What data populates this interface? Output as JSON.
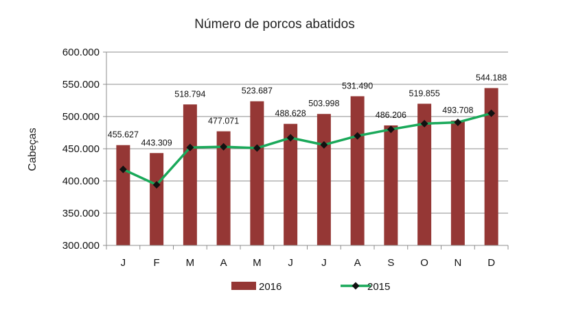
{
  "chart_data": {
    "type": "bar",
    "title": "Número de porcos abatidos",
    "ylabel": "Cabeças",
    "xlabel": "",
    "categories": [
      "J",
      "F",
      "M",
      "A",
      "M",
      "J",
      "J",
      "A",
      "S",
      "O",
      "N",
      "D"
    ],
    "ylim": [
      300000,
      600000
    ],
    "yticks": [
      300000,
      350000,
      400000,
      450000,
      500000,
      550000,
      600000
    ],
    "ytick_labels": [
      "300.000",
      "350.000",
      "400.000",
      "450.000",
      "500.000",
      "550.000",
      "600.000"
    ],
    "grid": true,
    "legend_position": "bottom",
    "series": [
      {
        "name": "2016",
        "kind": "bar",
        "color": "#953735",
        "values": [
          455627,
          443309,
          518794,
          477071,
          523687,
          488628,
          503998,
          531490,
          486206,
          519855,
          493708,
          544188
        ],
        "labels": [
          "455.627",
          "443.309",
          "518.794",
          "477.071",
          "523.687",
          "488.628",
          "503.998",
          "531.490",
          "486.206",
          "519.855",
          "493.708",
          "544.188"
        ]
      },
      {
        "name": "2015",
        "kind": "line",
        "color": "#1aa95a",
        "marker_color": "#111111",
        "values": [
          418000,
          394000,
          452000,
          453000,
          451000,
          467000,
          456000,
          470000,
          480000,
          489000,
          491000,
          505000
        ]
      }
    ]
  }
}
